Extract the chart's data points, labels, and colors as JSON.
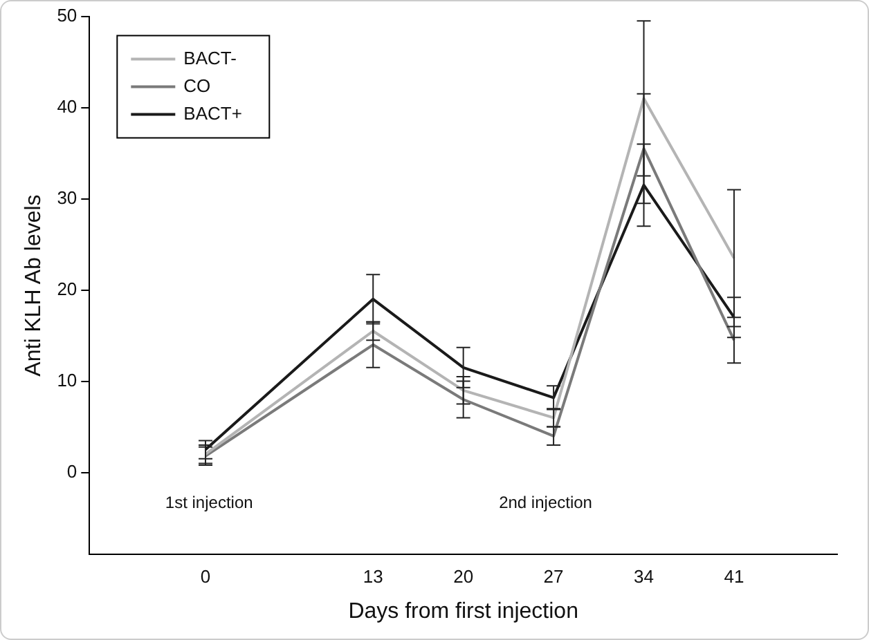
{
  "chart_data": {
    "type": "line",
    "xlabel": "Days from first injection",
    "ylabel": "Anti KLH Ab levels",
    "x": [
      0,
      13,
      20,
      27,
      34,
      41
    ],
    "xlim": [
      -9,
      49
    ],
    "xticks": [
      0,
      13,
      20,
      27,
      34,
      41
    ],
    "ylim": [
      -9,
      50
    ],
    "yticks": [
      0,
      10,
      20,
      30,
      40,
      50
    ],
    "grid": false,
    "legend": "top left",
    "line_style": "solid",
    "series": [
      {
        "name": "BACT-",
        "color": "#b4b4b4",
        "values": [
          2,
          15.5,
          9,
          6,
          41,
          23.5
        ],
        "errors": [
          1,
          1,
          1.5,
          1,
          8.5,
          7.5
        ]
      },
      {
        "name": "CO",
        "color": "#7a7a7a",
        "values": [
          1.8,
          14,
          8,
          4,
          35.5,
          14.5
        ],
        "errors": [
          1,
          2.5,
          2,
          1,
          6,
          2.5
        ]
      },
      {
        "name": "BACT+",
        "color": "#1a1a1a",
        "values": [
          2.5,
          19,
          11.5,
          8.2,
          31.5,
          17
        ],
        "errors": [
          1,
          2.7,
          2.2,
          1.3,
          4.5,
          2.2
        ]
      }
    ],
    "annotations": [
      "1st injection",
      "2nd injection"
    ]
  }
}
